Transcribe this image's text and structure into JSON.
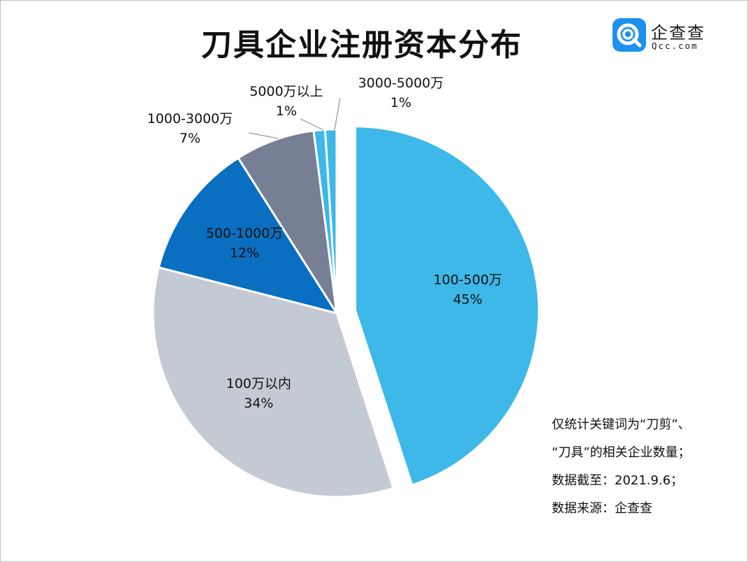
{
  "title": "刀具企业注册资本分布",
  "logo": {
    "name": "企查查",
    "domain": "Qcc.com",
    "icon": "qcc-logo-icon"
  },
  "chart_data": {
    "type": "pie",
    "title": "刀具企业注册资本分布",
    "slices": [
      {
        "label": "100-500万",
        "value": 45,
        "display": "45%",
        "color": "#3db8e8",
        "exploded": true
      },
      {
        "label": "100万以内",
        "value": 34,
        "display": "34%",
        "color": "#c3cad3"
      },
      {
        "label": "500-1000万",
        "value": 12,
        "display": "12%",
        "color": "#0a6fc0"
      },
      {
        "label": "1000-3000万",
        "value": 7,
        "display": "7%",
        "color": "#767f94"
      },
      {
        "label": "5000万以上",
        "value": 1,
        "display": "1%",
        "color": "#3db8e8"
      },
      {
        "label": "3000-5000万",
        "value": 1,
        "display": "1%",
        "color": "#3db8e8"
      }
    ],
    "legend": "none"
  },
  "notes": [
    "仅统计关键词为“刀剪”、",
    "“刀具”的相关企业数量；",
    "数据截至：2021.9.6；",
    "数据来源：企查查"
  ]
}
